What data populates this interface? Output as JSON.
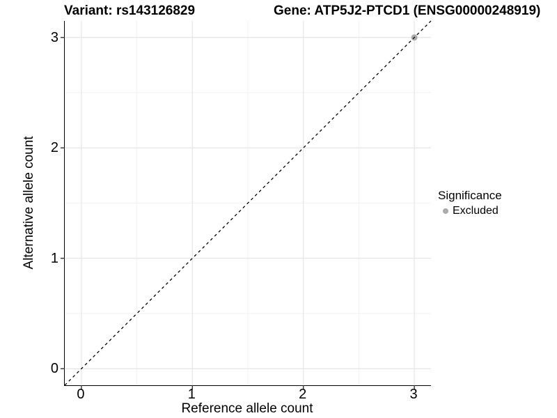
{
  "chart_data": {
    "type": "scatter",
    "titles": {
      "left": "Variant: rs143126829",
      "right": "Gene: ATP5J2-PTCD1 (ENSG00000248919)"
    },
    "xlabel": "Reference allele count",
    "ylabel": "Alternative allele count",
    "xlim": [
      -0.15,
      3.15
    ],
    "ylim": [
      -0.15,
      3.15
    ],
    "xticks": [
      0,
      1,
      2,
      3
    ],
    "yticks": [
      0,
      1,
      2,
      3
    ],
    "x_minor_gridlines": [
      0.5,
      1.5,
      2.5
    ],
    "y_minor_gridlines": [
      0.5,
      1.5,
      2.5
    ],
    "grid": "on",
    "reference_line": {
      "slope": 1,
      "intercept": 0,
      "style": "dashed",
      "color": "#000000"
    },
    "points": [
      {
        "x": 3,
        "y": 3,
        "significance": "Excluded"
      }
    ],
    "point_radius": 4.5,
    "legend": {
      "title": "Significance",
      "position": "right",
      "items": [
        {
          "label": "Excluded",
          "color": "#ababab"
        }
      ]
    },
    "colors": {
      "panel_background": "#ffffff",
      "grid_major": "#e5e5e5",
      "grid_minor": "#f2f2f2",
      "axis_line": "#000000",
      "tick_mark": "#333333",
      "text": "#000000"
    }
  }
}
